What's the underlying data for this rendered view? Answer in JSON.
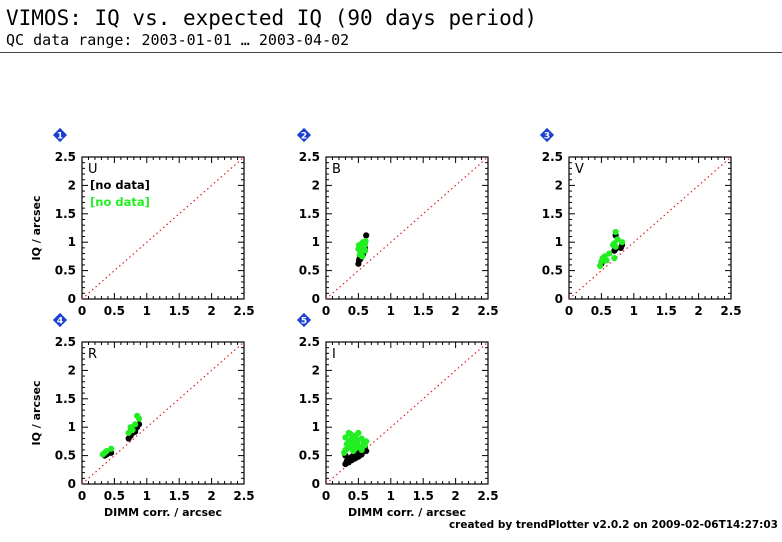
{
  "header": {
    "title": "VIMOS: IQ vs. expected IQ (90 days period)",
    "subtitle": "QC data range: 2003-01-01 … 2003-04-02"
  },
  "footer": {
    "credit": "created by trendPlotter v2.0.2 on 2009-02-06T14:27:03"
  },
  "colors": {
    "series_black": "#000000",
    "series_green": "#22ee22",
    "reference_line": "#e02020",
    "badge": "#1a3fd1"
  },
  "chart_data": [
    {
      "type": "scatter",
      "panel_number": "1",
      "filter_label": "U",
      "xlabel": "",
      "ylabel": "IQ / arcsec",
      "xlim": [
        0,
        2.5
      ],
      "ylim": [
        0,
        2.5
      ],
      "x_ticks": [
        "0",
        "0.5",
        "1",
        "1.5",
        "2",
        "2.5"
      ],
      "y_ticks": [
        "0",
        "0.5",
        "1",
        "1.5",
        "2",
        "2.5"
      ],
      "reference_line": "y = x",
      "no_data_black": "[no data]",
      "no_data_green": "[no data]",
      "series": [
        {
          "color": "#000000",
          "points": []
        },
        {
          "color": "#22ee22",
          "points": []
        }
      ]
    },
    {
      "type": "scatter",
      "panel_number": "2",
      "filter_label": "B",
      "xlabel": "",
      "ylabel": "",
      "xlim": [
        0,
        2.5
      ],
      "ylim": [
        0,
        2.5
      ],
      "x_ticks": [
        "0",
        "0.5",
        "1",
        "1.5",
        "2",
        "2.5"
      ],
      "y_ticks": [
        "0",
        "0.5",
        "1",
        "1.5",
        "2",
        "2.5"
      ],
      "reference_line": "y = x",
      "series": [
        {
          "color": "#000000",
          "points": [
            [
              0.5,
              0.62
            ],
            [
              0.51,
              0.68
            ],
            [
              0.52,
              0.72
            ],
            [
              0.53,
              0.7
            ],
            [
              0.55,
              0.76
            ],
            [
              0.56,
              0.8
            ],
            [
              0.58,
              0.82
            ],
            [
              0.6,
              0.85
            ],
            [
              0.62,
              1.12
            ],
            [
              0.6,
              0.9
            ],
            [
              0.57,
              0.78
            ]
          ]
        },
        {
          "color": "#22ee22",
          "points": [
            [
              0.5,
              0.88
            ],
            [
              0.51,
              0.95
            ],
            [
              0.53,
              0.92
            ],
            [
              0.54,
              0.82
            ],
            [
              0.55,
              0.97
            ],
            [
              0.56,
              0.9
            ],
            [
              0.57,
              1.0
            ],
            [
              0.58,
              0.93
            ],
            [
              0.6,
              0.96
            ],
            [
              0.6,
              0.85
            ],
            [
              0.52,
              0.78
            ],
            [
              0.56,
              0.75
            ],
            [
              0.61,
              1.02
            ],
            [
              0.59,
              0.88
            ]
          ]
        }
      ]
    },
    {
      "type": "scatter",
      "panel_number": "3",
      "filter_label": "V",
      "xlabel": "",
      "ylabel": "",
      "xlim": [
        0,
        2.5
      ],
      "ylim": [
        0,
        2.5
      ],
      "x_ticks": [
        "0",
        "0.5",
        "1",
        "1.5",
        "2",
        "2.5"
      ],
      "y_ticks": [
        "0",
        "0.5",
        "1",
        "1.5",
        "2",
        "2.5"
      ],
      "reference_line": "y = x",
      "series": [
        {
          "color": "#000000",
          "points": [
            [
              0.5,
              0.62
            ],
            [
              0.52,
              0.68
            ],
            [
              0.55,
              0.7
            ],
            [
              0.7,
              0.85
            ],
            [
              0.72,
              0.88
            ],
            [
              0.72,
              1.12
            ],
            [
              0.82,
              0.95
            ],
            [
              0.8,
              0.9
            ]
          ]
        },
        {
          "color": "#22ee22",
          "points": [
            [
              0.48,
              0.58
            ],
            [
              0.5,
              0.66
            ],
            [
              0.52,
              0.72
            ],
            [
              0.55,
              0.75
            ],
            [
              0.58,
              0.68
            ],
            [
              0.62,
              0.8
            ],
            [
              0.68,
              0.95
            ],
            [
              0.7,
              0.98
            ],
            [
              0.72,
              0.92
            ],
            [
              0.75,
              1.05
            ],
            [
              0.72,
              1.18
            ],
            [
              0.82,
              1.0
            ],
            [
              0.7,
              0.72
            ]
          ]
        }
      ]
    },
    {
      "type": "scatter",
      "panel_number": "4",
      "filter_label": "R",
      "xlabel": "DIMM corr. / arcsec",
      "ylabel": "IQ / arcsec",
      "xlim": [
        0,
        2.5
      ],
      "ylim": [
        0,
        2.5
      ],
      "x_ticks": [
        "0",
        "0.5",
        "1",
        "1.5",
        "2",
        "2.5"
      ],
      "y_ticks": [
        "0",
        "0.5",
        "1",
        "1.5",
        "2",
        "2.5"
      ],
      "reference_line": "y = x",
      "series": [
        {
          "color": "#000000",
          "points": [
            [
              0.35,
              0.5
            ],
            [
              0.38,
              0.52
            ],
            [
              0.42,
              0.55
            ],
            [
              0.45,
              0.55
            ],
            [
              0.72,
              0.8
            ],
            [
              0.75,
              0.85
            ],
            [
              0.78,
              0.9
            ],
            [
              0.8,
              0.95
            ],
            [
              0.82,
              0.92
            ],
            [
              0.85,
              1.0
            ],
            [
              0.88,
              1.05
            ],
            [
              0.75,
              0.92
            ]
          ]
        },
        {
          "color": "#22ee22",
          "points": [
            [
              0.32,
              0.52
            ],
            [
              0.35,
              0.55
            ],
            [
              0.38,
              0.58
            ],
            [
              0.45,
              0.62
            ],
            [
              0.72,
              0.9
            ],
            [
              0.75,
              1.0
            ],
            [
              0.78,
              0.95
            ],
            [
              0.82,
              1.05
            ],
            [
              0.85,
              1.2
            ],
            [
              0.88,
              1.15
            ]
          ]
        }
      ]
    },
    {
      "type": "scatter",
      "panel_number": "5",
      "filter_label": "I",
      "xlabel": "DIMM corr. / arcsec",
      "ylabel": "",
      "xlim": [
        0,
        2.5
      ],
      "ylim": [
        0,
        2.5
      ],
      "x_ticks": [
        "0",
        "0.5",
        "1",
        "1.5",
        "2",
        "2.5"
      ],
      "y_ticks": [
        "0",
        "0.5",
        "1",
        "1.5",
        "2",
        "2.5"
      ],
      "reference_line": "y = x",
      "series": [
        {
          "color": "#000000",
          "points": [
            [
              0.3,
              0.35
            ],
            [
              0.32,
              0.4
            ],
            [
              0.35,
              0.45
            ],
            [
              0.38,
              0.42
            ],
            [
              0.4,
              0.48
            ],
            [
              0.42,
              0.5
            ],
            [
              0.45,
              0.45
            ],
            [
              0.48,
              0.52
            ],
            [
              0.5,
              0.55
            ],
            [
              0.52,
              0.5
            ],
            [
              0.55,
              0.6
            ],
            [
              0.58,
              0.62
            ],
            [
              0.6,
              0.65
            ],
            [
              0.62,
              0.58
            ],
            [
              0.35,
              0.38
            ],
            [
              0.45,
              0.55
            ],
            [
              0.5,
              0.48
            ],
            [
              0.3,
              0.5
            ],
            [
              0.4,
              0.42
            ],
            [
              0.55,
              0.52
            ]
          ]
        },
        {
          "color": "#22ee22",
          "points": [
            [
              0.28,
              0.55
            ],
            [
              0.3,
              0.6
            ],
            [
              0.32,
              0.7
            ],
            [
              0.35,
              0.75
            ],
            [
              0.35,
              0.9
            ],
            [
              0.38,
              0.65
            ],
            [
              0.4,
              0.8
            ],
            [
              0.42,
              0.72
            ],
            [
              0.45,
              0.85
            ],
            [
              0.48,
              0.7
            ],
            [
              0.5,
              0.78
            ],
            [
              0.52,
              0.65
            ],
            [
              0.55,
              0.8
            ],
            [
              0.58,
              0.72
            ],
            [
              0.6,
              0.68
            ],
            [
              0.62,
              0.75
            ],
            [
              0.38,
              0.88
            ],
            [
              0.45,
              0.62
            ],
            [
              0.3,
              0.82
            ],
            [
              0.5,
              0.9
            ],
            [
              0.42,
              0.58
            ],
            [
              0.55,
              0.6
            ],
            [
              0.33,
              0.62
            ],
            [
              0.47,
              0.75
            ],
            [
              0.4,
              0.68
            ]
          ]
        }
      ]
    }
  ]
}
